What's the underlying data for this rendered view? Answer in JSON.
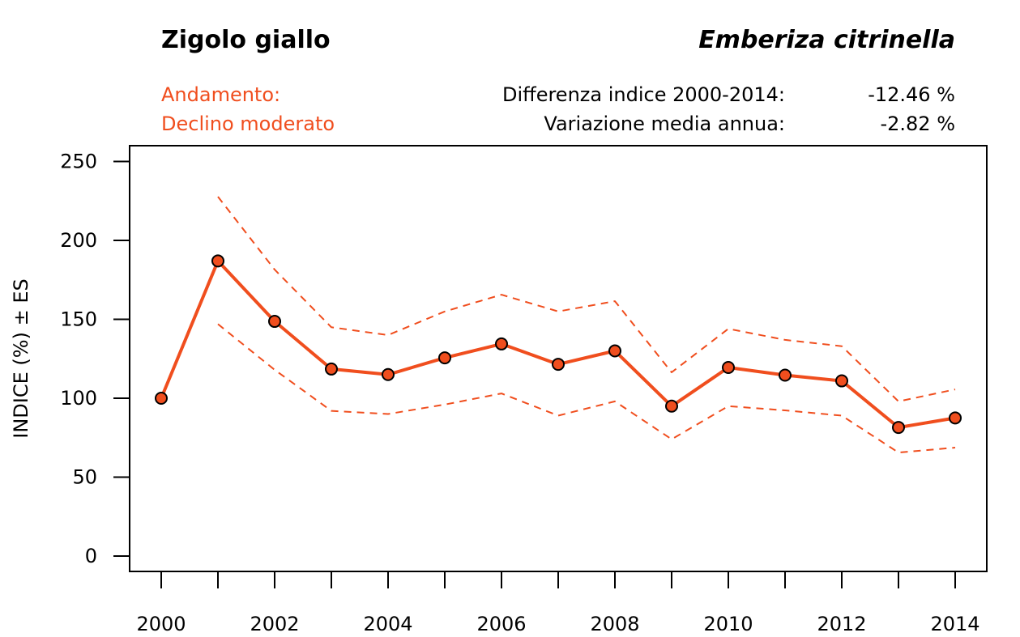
{
  "header": {
    "common_name": "Zigolo giallo",
    "scientific_name": "Emberiza citrinella",
    "trend_label": "Andamento:",
    "trend_value": "Declino moderato",
    "diff_label": "Differenza indice 2000-2014:",
    "diff_value": "-12.46 %",
    "annual_label": "Variazione media annua:",
    "annual_value": "-2.82 %"
  },
  "colors": {
    "accent": "#F04E1E",
    "axis": "#000000"
  },
  "chart_data": {
    "type": "line",
    "title": "Zigolo giallo — Emberiza citrinella",
    "xlabel": "",
    "ylabel": "INDICE (%) ± ES",
    "x": [
      2000,
      2001,
      2002,
      2003,
      2004,
      2005,
      2006,
      2007,
      2008,
      2009,
      2010,
      2011,
      2012,
      2013,
      2014
    ],
    "xlim": [
      2000,
      2014
    ],
    "x_tick_labels": [
      "2000",
      "2002",
      "2004",
      "2006",
      "2008",
      "2010",
      "2012",
      "2014"
    ],
    "ylim": [
      0,
      250
    ],
    "y_ticks": [
      0,
      50,
      100,
      150,
      200,
      250
    ],
    "y_tick_labels": [
      "0",
      "50",
      "100",
      "150",
      "200",
      "250"
    ],
    "grid": false,
    "legend": "none",
    "series": [
      {
        "name": "Indice",
        "style": "solid-with-markers",
        "values": [
          100,
          187,
          148.7,
          118.5,
          115,
          125.6,
          134.4,
          121.5,
          130,
          95,
          119.5,
          114.6,
          111,
          81.5,
          87.5
        ]
      },
      {
        "name": "Indice + ES",
        "style": "dashed",
        "values": [
          null,
          227.7,
          181.5,
          145,
          140,
          155,
          165.6,
          155,
          161.5,
          116.4,
          144,
          137,
          133,
          98,
          105.6
        ]
      },
      {
        "name": "Indice - ES",
        "style": "dashed",
        "values": [
          null,
          147,
          118,
          92,
          90,
          96,
          103,
          89,
          98,
          74,
          95,
          92.3,
          89,
          65.6,
          68.7
        ]
      }
    ]
  }
}
